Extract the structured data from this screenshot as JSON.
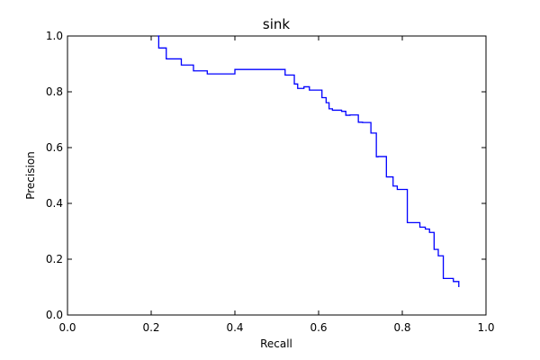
{
  "chart_data": {
    "type": "line",
    "title": "sink",
    "xlabel": "Recall",
    "ylabel": "Precision",
    "xlim": [
      0.0,
      1.0
    ],
    "ylim": [
      0.0,
      1.0
    ],
    "xticks": [
      "0.0",
      "0.2",
      "0.4",
      "0.6",
      "0.8",
      "1.0"
    ],
    "yticks": [
      "0.0",
      "0.2",
      "0.4",
      "0.6",
      "0.8",
      "1.0"
    ],
    "grid": false,
    "line_style": "step",
    "color": "#0000ff",
    "series": [
      {
        "x": [
          0.215,
          0.218,
          0.218,
          0.236,
          0.236,
          0.272,
          0.272,
          0.301,
          0.301,
          0.334,
          0.334,
          0.4,
          0.4,
          0.52,
          0.52,
          0.542,
          0.542,
          0.55,
          0.55,
          0.565,
          0.565,
          0.578,
          0.578,
          0.608,
          0.608,
          0.618,
          0.618,
          0.625,
          0.625,
          0.633,
          0.633,
          0.655,
          0.655,
          0.665,
          0.665,
          0.675,
          0.675,
          0.695,
          0.695,
          0.705,
          0.705,
          0.725,
          0.725,
          0.738,
          0.738,
          0.742,
          0.742,
          0.762,
          0.762,
          0.778,
          0.778,
          0.788,
          0.788,
          0.812,
          0.812,
          0.842,
          0.842,
          0.855,
          0.855,
          0.865,
          0.865,
          0.876,
          0.876,
          0.886,
          0.886,
          0.898,
          0.898,
          0.902,
          0.902,
          0.922,
          0.922,
          0.935,
          0.935
        ],
        "y": [
          1.0,
          1.0,
          0.957,
          0.957,
          0.918,
          0.918,
          0.896,
          0.896,
          0.875,
          0.875,
          0.864,
          0.864,
          0.88,
          0.88,
          0.86,
          0.86,
          0.828,
          0.828,
          0.812,
          0.812,
          0.818,
          0.818,
          0.806,
          0.806,
          0.779,
          0.779,
          0.761,
          0.761,
          0.739,
          0.739,
          0.734,
          0.734,
          0.73,
          0.73,
          0.716,
          0.716,
          0.717,
          0.717,
          0.691,
          0.691,
          0.69,
          0.69,
          0.652,
          0.652,
          0.567,
          0.567,
          0.568,
          0.568,
          0.495,
          0.495,
          0.462,
          0.462,
          0.45,
          0.45,
          0.331,
          0.331,
          0.315,
          0.315,
          0.308,
          0.308,
          0.296,
          0.296,
          0.235,
          0.235,
          0.212,
          0.212,
          0.131,
          0.131,
          0.131,
          0.131,
          0.12,
          0.12,
          0.1
        ]
      }
    ]
  }
}
